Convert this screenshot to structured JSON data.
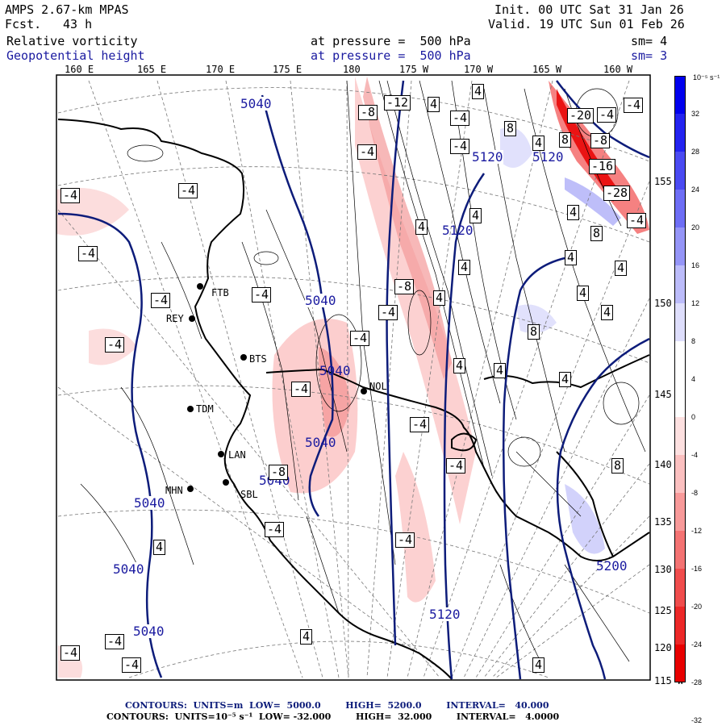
{
  "header": {
    "model": "AMPS 2.67-km MPAS",
    "fcst_label": "Fcst.",
    "fcst_value": "43 h",
    "init": "Init. 00 UTC Sat 31 Jan 26",
    "valid": "Valid. 19 UTC Sun 01 Feb 26",
    "field1": "Relative vorticity",
    "field1_level": "at pressure =  500 hPa",
    "field1_sm": "sm= 4",
    "field2": "Geopotential height",
    "field2_level": "at pressure =  500 hPa",
    "field2_sm": "sm= 3"
  },
  "top_lon_labels": [
    "160 E",
    "165 E",
    "170 E",
    "175 E",
    "180",
    "175 W",
    "170 W",
    "165 W",
    "160 W"
  ],
  "right_lon_labels": [
    "155 W",
    "150 W",
    "145 W",
    "140 W",
    "135 W",
    "130 W",
    "125 W",
    "120 W",
    "115 W"
  ],
  "stations": [
    "FTB",
    "REY",
    "BTS",
    "TDM",
    "LAN",
    "SBL",
    "MHN",
    "NOL"
  ],
  "height_contour_labels": [
    "5040",
    "5040",
    "5040",
    "5040",
    "5040",
    "5040",
    "5040",
    "5040",
    "5120",
    "5120",
    "5120",
    "5120",
    "5200"
  ],
  "vorticity_labels": [
    "-4",
    "-8",
    "-12",
    "4",
    "8",
    "-20",
    "-16",
    "-28"
  ],
  "colorbar": {
    "units": "10⁻⁵ s⁻¹",
    "ticks": [
      "32",
      "28",
      "24",
      "20",
      "16",
      "12",
      "8",
      "4",
      "0",
      "-4",
      "-8",
      "-12",
      "-16",
      "-20",
      "-24",
      "-28",
      "-32"
    ],
    "colors": [
      "#0000ee",
      "#2323f0",
      "#4a4af2",
      "#6e6ef5",
      "#9595f7",
      "#bcbcfa",
      "#dedefc",
      "#ffffff",
      "#ffffff",
      "#fde0e0",
      "#fbc0c0",
      "#f89a9a",
      "#f47373",
      "#f04d4d",
      "#ec2828",
      "#e80000"
    ]
  },
  "footer": {
    "line1": "CONTOURS:  UNITS=m  LOW=  5000.0        HIGH=  5200.0        INTERVAL=   40.000",
    "line2": "CONTOURS:  UNITS=10⁻⁵ s⁻¹  LOW= -32.000        HIGH=  32.000        INTERVAL=   4.0000"
  },
  "colors": {
    "height_contour": "#0d1c7a",
    "header_blue": "#1a1aa0"
  }
}
